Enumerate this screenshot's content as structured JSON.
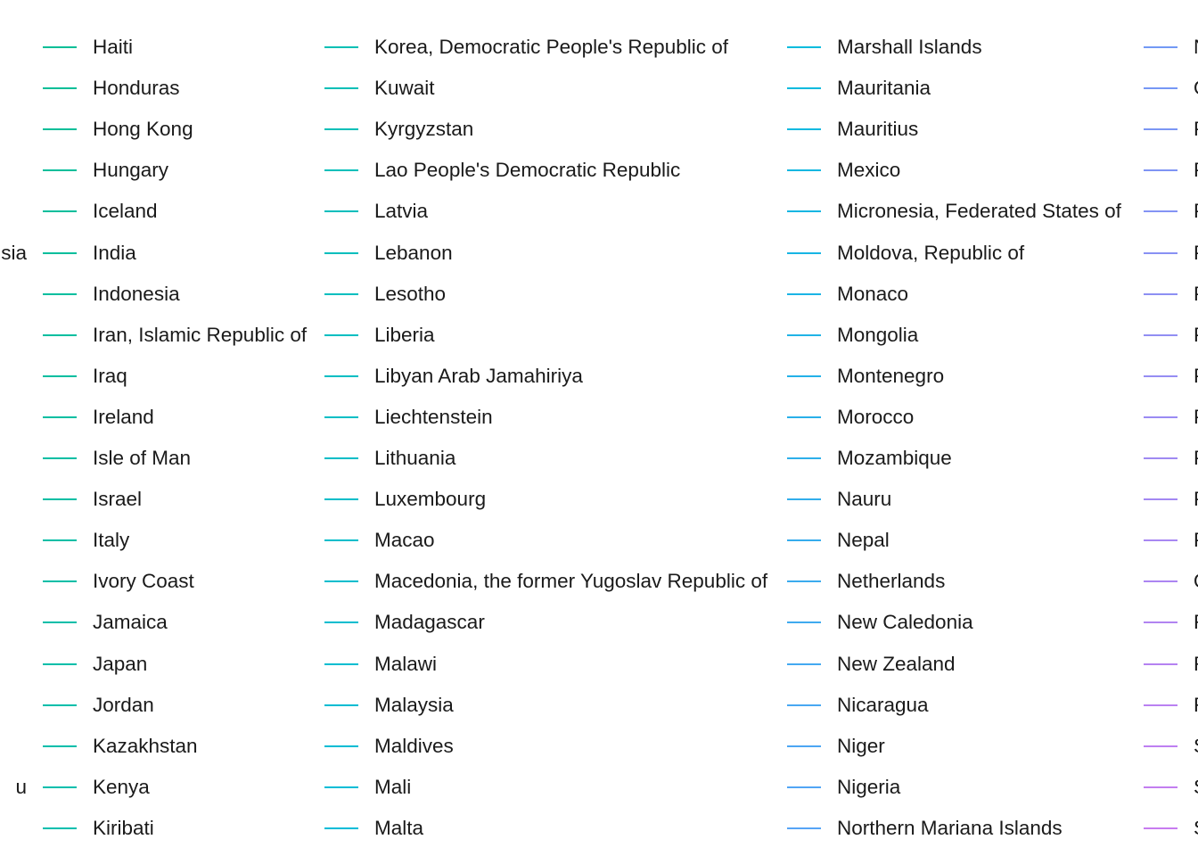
{
  "chart_data": {
    "type": "line",
    "title": "",
    "xlabel": "",
    "ylabel": "",
    "legend": {
      "placement": "right",
      "partial_entries": [
        {
          "name": "sia",
          "color": "#00BF96"
        },
        {
          "name": "u",
          "color": "#00BF96"
        }
      ],
      "columns": [
        {
          "color_start": "#00BE96",
          "color_end": "#00BEAE",
          "entries": [
            "Haiti",
            "Honduras",
            "Hong Kong",
            "Hungary",
            "Iceland",
            "India",
            "Indonesia",
            "Iran, Islamic Republic of",
            "Iraq",
            "Ireland",
            "Isle of Man",
            "Israel",
            "Italy",
            "Ivory Coast",
            "Jamaica",
            "Japan",
            "Jordan",
            "Kazakhstan",
            "Kenya",
            "Kiribati"
          ]
        },
        {
          "color_start": "#00BFB4",
          "color_end": "#00BCD8",
          "entries": [
            "Korea, Democratic People's Republic of",
            "Kuwait",
            "Kyrgyzstan",
            "Lao People's Democratic Republic",
            "Latvia",
            "Lebanon",
            "Lesotho",
            "Liberia",
            "Libyan Arab Jamahiriya",
            "Liechtenstein",
            "Lithuania",
            "Luxembourg",
            "Macao",
            "Macedonia, the former Yugoslav Republic of",
            "Madagascar",
            "Malawi",
            "Malaysia",
            "Maldives",
            "Mali",
            "Malta"
          ]
        },
        {
          "color_start": "#00BBDD",
          "color_end": "#56A4F6",
          "entries": [
            "Marshall Islands",
            "Mauritania",
            "Mauritius",
            "Mexico",
            "Micronesia, Federated States of",
            "Moldova, Republic of",
            "Monaco",
            "Mongolia",
            "Montenegro",
            "Morocco",
            "Mozambique",
            "Nauru",
            "Nepal",
            "Netherlands",
            "New Caledonia",
            "New Zealand",
            "Nicaragua",
            "Niger",
            "Nigeria",
            "Northern Mariana Islands"
          ]
        },
        {
          "color_start": "#7299F5",
          "color_end": "#C77CF0",
          "entries": [
            "N",
            "O",
            "P",
            "P",
            "P",
            "P",
            "P",
            "P",
            "P",
            "P",
            "P",
            "P",
            "P",
            "Q",
            "R",
            "R",
            "R",
            "S",
            "S",
            "S"
          ]
        }
      ]
    }
  }
}
